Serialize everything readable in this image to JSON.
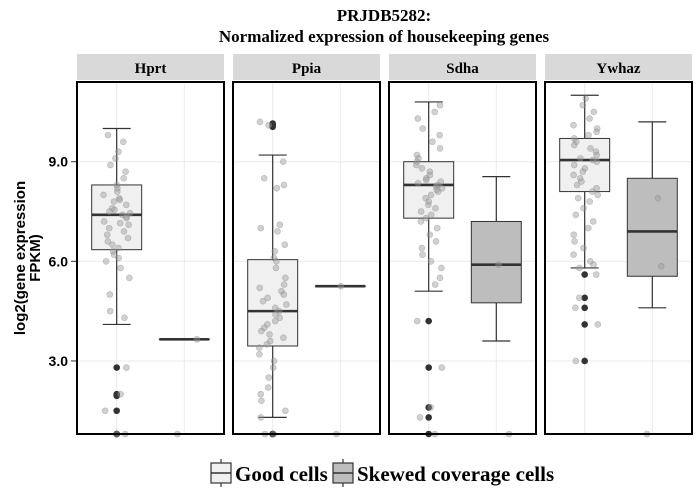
{
  "chart_data": {
    "type": "box",
    "title_lines": [
      "PRJDB5282:",
      "Normalized expression of housekeeping genes"
    ],
    "ylabel_lines": [
      "log2(gene expression",
      "FPKM)"
    ],
    "xlabel": "",
    "ylim": [
      0.8,
      11.4
    ],
    "yticks": [
      {
        "value": 3.0,
        "label": "3.0"
      },
      {
        "value": 6.0,
        "label": "6.0"
      },
      {
        "value": 9.0,
        "label": "9.0"
      }
    ],
    "legend": {
      "position": "bottom",
      "entries": [
        {
          "label": "Good cells",
          "fill": "#f0f0f0"
        },
        {
          "label": "Skewed coverage cells",
          "fill": "#bdbdbd"
        }
      ]
    },
    "colors": {
      "good_fill": "#f0f0f0",
      "skewed_fill": "#bdbdbd",
      "strip_bg": "#d9d9d9",
      "outlier": "#333333",
      "jitter": "#b3b3b3"
    },
    "panels": [
      {
        "name": "Hprt",
        "boxes": [
          {
            "group": "Good cells",
            "whisker_low": 4.1,
            "q1": 6.35,
            "median": 7.4,
            "q3": 8.3,
            "whisker_high": 10.0,
            "outliers": [
              2.8,
              2.0,
              1.95,
              1.5,
              0.8,
              0.8,
              0.8
            ]
          },
          {
            "group": "Skewed coverage cells",
            "whisker_low": 3.65,
            "q1": 3.65,
            "median": 3.65,
            "q3": 3.65,
            "whisker_high": 3.65,
            "outliers": []
          }
        ],
        "points": {
          "good": [
            9.8,
            9.6,
            9.3,
            9.1,
            8.9,
            8.7,
            8.5,
            8.3,
            8.2,
            8.1,
            8.0,
            7.9,
            7.85,
            7.8,
            7.7,
            7.6,
            7.55,
            7.5,
            7.45,
            7.4,
            7.35,
            7.3,
            7.2,
            7.15,
            7.1,
            7.0,
            6.9,
            6.8,
            6.7,
            6.6,
            6.5,
            6.4,
            6.3,
            6.2,
            6.1,
            6.0,
            5.8,
            5.5,
            5.0,
            4.5,
            4.3,
            2.8,
            2.0,
            1.5,
            0.8,
            0.8
          ],
          "skewed": [
            3.65,
            0.8
          ]
        }
      },
      {
        "name": "Ppia",
        "boxes": [
          {
            "group": "Good cells",
            "whisker_low": 1.3,
            "q1": 3.45,
            "median": 4.5,
            "q3": 6.05,
            "whisker_high": 9.2,
            "outliers": [
              10.15,
              10.1,
              10.05,
              0.8,
              0.8
            ]
          },
          {
            "group": "Skewed coverage cells",
            "whisker_low": 5.25,
            "q1": 5.25,
            "median": 5.25,
            "q3": 5.25,
            "whisker_high": 5.25,
            "outliers": []
          }
        ],
        "points": {
          "good": [
            10.2,
            10.1,
            9.0,
            8.5,
            8.3,
            8.2,
            7.1,
            7.0,
            6.9,
            6.5,
            6.3,
            6.1,
            6.0,
            5.8,
            5.5,
            5.3,
            5.2,
            5.1,
            5.0,
            4.9,
            4.8,
            4.7,
            4.6,
            4.5,
            4.4,
            4.3,
            4.2,
            4.1,
            4.0,
            3.9,
            3.8,
            3.7,
            3.6,
            3.5,
            3.4,
            3.2,
            3.0,
            2.8,
            2.5,
            2.2,
            2.0,
            1.8,
            1.5,
            1.3,
            0.8,
            0.8
          ],
          "skewed": [
            5.25,
            0.8
          ]
        }
      },
      {
        "name": "Sdha",
        "boxes": [
          {
            "group": "Good cells",
            "whisker_low": 5.1,
            "q1": 7.3,
            "median": 8.3,
            "q3": 9.0,
            "whisker_high": 10.8,
            "outliers": [
              4.2,
              2.8,
              1.6,
              1.3,
              0.8
            ]
          },
          {
            "group": "Skewed coverage cells",
            "whisker_low": 3.6,
            "q1": 4.75,
            "median": 5.9,
            "q3": 7.2,
            "whisker_high": 8.55,
            "outliers": []
          }
        ],
        "points": {
          "good": [
            10.7,
            10.5,
            10.3,
            10.0,
            9.8,
            9.6,
            9.4,
            9.2,
            9.1,
            9.0,
            8.9,
            8.8,
            8.7,
            8.6,
            8.5,
            8.45,
            8.4,
            8.35,
            8.3,
            8.25,
            8.2,
            8.15,
            8.1,
            8.0,
            7.9,
            7.8,
            7.7,
            7.6,
            7.5,
            7.4,
            7.3,
            7.2,
            7.0,
            6.8,
            6.6,
            6.4,
            6.2,
            6.0,
            5.8,
            5.5,
            5.3,
            4.2,
            2.8,
            1.6,
            1.3,
            0.8
          ],
          "skewed": [
            5.9,
            0.8
          ]
        }
      },
      {
        "name": "Ywhaz",
        "boxes": [
          {
            "group": "Good cells",
            "whisker_low": 5.8,
            "q1": 8.1,
            "median": 9.05,
            "q3": 9.7,
            "whisker_high": 11.0,
            "outliers": [
              5.6,
              4.9,
              4.6,
              4.1,
              3.0
            ]
          },
          {
            "group": "Skewed coverage cells",
            "whisker_low": 4.6,
            "q1": 5.55,
            "median": 6.9,
            "q3": 8.5,
            "whisker_high": 10.2,
            "outliers": []
          }
        ],
        "points": {
          "good": [
            10.9,
            10.7,
            10.5,
            10.3,
            10.1,
            10.0,
            9.9,
            9.8,
            9.7,
            9.6,
            9.5,
            9.4,
            9.3,
            9.2,
            9.1,
            9.05,
            9.0,
            8.9,
            8.8,
            8.7,
            8.6,
            8.5,
            8.4,
            8.3,
            8.2,
            8.1,
            8.0,
            7.9,
            7.8,
            7.6,
            7.4,
            7.2,
            7.0,
            6.8,
            6.6,
            6.4,
            6.2,
            6.0,
            5.9,
            5.8,
            5.6,
            4.9,
            4.6,
            4.1,
            3.0
          ],
          "skewed": [
            7.9,
            5.85,
            0.8
          ]
        }
      }
    ]
  }
}
